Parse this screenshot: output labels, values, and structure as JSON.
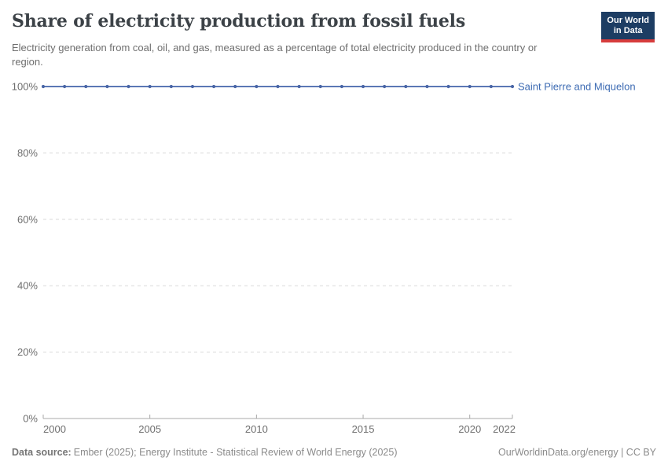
{
  "header": {
    "title": "Share of electricity production from fossil fuels",
    "subtitle": "Electricity generation from coal, oil, and gas, measured as a percentage of total electricity produced in the country or region.",
    "logo_line1": "Our World",
    "logo_line2": "in Data",
    "logo_bg_color": "#1d3d63",
    "logo_accent_color": "#d73c3c"
  },
  "chart_data": {
    "type": "line",
    "title": "Share of electricity production from fossil fuels",
    "xlabel": "",
    "ylabel": "",
    "x": [
      2000,
      2001,
      2002,
      2003,
      2004,
      2005,
      2006,
      2007,
      2008,
      2009,
      2010,
      2011,
      2012,
      2013,
      2014,
      2015,
      2016,
      2017,
      2018,
      2019,
      2020,
      2021,
      2022
    ],
    "series": [
      {
        "name": "Saint Pierre and Miquelon",
        "values": [
          100,
          100,
          100,
          100,
          100,
          100,
          100,
          100,
          100,
          100,
          100,
          100,
          100,
          100,
          100,
          100,
          100,
          100,
          100,
          100,
          100,
          100,
          100
        ],
        "color": "#5b78b5",
        "marker_color": "#4a66a6",
        "label_color": "#3d6bb3"
      }
    ],
    "xlim": [
      2000,
      2022
    ],
    "ylim": [
      0,
      100
    ],
    "x_ticks": [
      2000,
      2005,
      2010,
      2015,
      2020,
      2022
    ],
    "y_ticks": [
      0,
      20,
      40,
      60,
      80,
      100
    ],
    "y_tick_suffix": "%",
    "grid": "horizontal-dashed",
    "grid_color": "#d9d9d9",
    "axis_color": "#a8a8a8",
    "tick_label_color": "#6e6e6e",
    "legend_position": "end-of-line"
  },
  "footer": {
    "source_label": "Data source:",
    "source_text": "Ember (2025); Energy Institute - Statistical Review of World Energy (2025)",
    "link_text": "OurWorldinData.org/energy | CC BY"
  }
}
